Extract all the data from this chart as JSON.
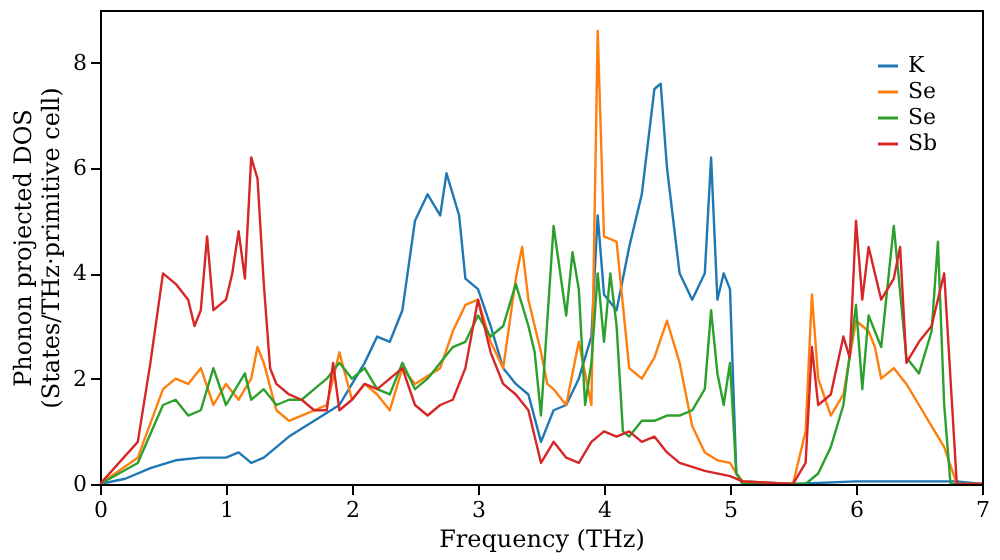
{
  "chart_data": {
    "type": "line",
    "xlabel": "Frequency (THz)",
    "ylabel": "Phonon projected DOS\n(States/THz·primitive cell)",
    "xlim": [
      0,
      7
    ],
    "ylim": [
      0,
      9
    ],
    "xticks": [
      0,
      1,
      2,
      3,
      4,
      5,
      6,
      7
    ],
    "yticks": [
      0,
      2,
      4,
      6,
      8
    ],
    "grid": false,
    "legend": "top right",
    "marker": "none",
    "line_style": "solid",
    "series": [
      {
        "name": "K",
        "color": "#1f77b4",
        "x": [
          0,
          0.2,
          0.4,
          0.6,
          0.8,
          1.0,
          1.1,
          1.2,
          1.3,
          1.5,
          1.7,
          1.9,
          2.0,
          2.1,
          2.2,
          2.3,
          2.4,
          2.5,
          2.6,
          2.7,
          2.75,
          2.85,
          2.9,
          3.0,
          3.1,
          3.2,
          3.3,
          3.4,
          3.5,
          3.6,
          3.7,
          3.8,
          3.9,
          3.95,
          4.0,
          4.1,
          4.2,
          4.3,
          4.4,
          4.45,
          4.5,
          4.6,
          4.7,
          4.8,
          4.85,
          4.9,
          4.95,
          5.0,
          5.05,
          5.1,
          5.5,
          6.0,
          6.8,
          7.0
        ],
        "values": [
          0,
          0.1,
          0.3,
          0.45,
          0.5,
          0.5,
          0.6,
          0.4,
          0.5,
          0.9,
          1.2,
          1.5,
          1.9,
          2.3,
          2.8,
          2.7,
          3.3,
          5.0,
          5.5,
          5.1,
          5.9,
          5.1,
          3.9,
          3.7,
          3.0,
          2.2,
          1.9,
          1.7,
          0.8,
          1.4,
          1.5,
          2.0,
          2.8,
          5.1,
          3.6,
          3.3,
          4.5,
          5.5,
          7.5,
          7.6,
          6.0,
          4.0,
          3.5,
          4.0,
          6.2,
          3.5,
          4.0,
          3.7,
          0.2,
          0.05,
          0,
          0.05,
          0.05,
          0
        ]
      },
      {
        "name": "Se",
        "color": "#ff7f0e",
        "x": [
          0,
          0.3,
          0.5,
          0.6,
          0.7,
          0.8,
          0.9,
          1.0,
          1.1,
          1.2,
          1.25,
          1.3,
          1.4,
          1.5,
          1.6,
          1.8,
          1.9,
          2.0,
          2.1,
          2.2,
          2.3,
          2.4,
          2.5,
          2.7,
          2.8,
          2.9,
          3.0,
          3.1,
          3.2,
          3.3,
          3.35,
          3.4,
          3.5,
          3.55,
          3.6,
          3.7,
          3.8,
          3.9,
          3.95,
          4.0,
          4.1,
          4.15,
          4.2,
          4.3,
          4.4,
          4.5,
          4.6,
          4.7,
          4.8,
          4.9,
          5.0,
          5.05,
          5.1,
          5.5,
          5.6,
          5.65,
          5.7,
          5.8,
          5.9,
          6.0,
          6.1,
          6.15,
          6.2,
          6.3,
          6.4,
          6.5,
          6.6,
          6.7,
          6.8,
          7.0
        ],
        "values": [
          0,
          0.5,
          1.8,
          2.0,
          1.9,
          2.2,
          1.5,
          1.9,
          1.6,
          2.0,
          2.6,
          2.3,
          1.4,
          1.2,
          1.3,
          1.5,
          2.5,
          1.6,
          1.9,
          1.7,
          1.4,
          2.2,
          1.9,
          2.2,
          2.9,
          3.4,
          3.5,
          2.7,
          2.2,
          3.9,
          4.5,
          3.5,
          2.5,
          1.9,
          1.8,
          1.5,
          2.7,
          1.5,
          8.6,
          4.7,
          4.6,
          3.4,
          2.2,
          2.0,
          2.4,
          3.1,
          2.3,
          1.1,
          0.6,
          0.45,
          0.4,
          0.2,
          0.05,
          0,
          1.0,
          3.6,
          2.0,
          1.3,
          1.7,
          3.1,
          2.9,
          2.6,
          2.0,
          2.2,
          1.9,
          1.5,
          1.1,
          0.7,
          0,
          0
        ]
      },
      {
        "name": "Se",
        "color": "#2ca02c",
        "x": [
          0,
          0.3,
          0.5,
          0.6,
          0.7,
          0.8,
          0.9,
          1.0,
          1.1,
          1.15,
          1.2,
          1.3,
          1.4,
          1.5,
          1.6,
          1.7,
          1.8,
          1.9,
          2.0,
          2.1,
          2.2,
          2.3,
          2.4,
          2.5,
          2.6,
          2.8,
          2.9,
          3.0,
          3.1,
          3.2,
          3.3,
          3.4,
          3.45,
          3.5,
          3.6,
          3.7,
          3.75,
          3.8,
          3.85,
          3.9,
          3.95,
          4.0,
          4.05,
          4.1,
          4.15,
          4.2,
          4.3,
          4.4,
          4.5,
          4.6,
          4.7,
          4.8,
          4.85,
          4.9,
          4.95,
          5.0,
          5.05,
          5.1,
          5.6,
          5.7,
          5.8,
          5.9,
          6.0,
          6.05,
          6.1,
          6.2,
          6.3,
          6.4,
          6.5,
          6.6,
          6.65,
          6.7,
          6.75,
          7.0
        ],
        "values": [
          0,
          0.4,
          1.5,
          1.6,
          1.3,
          1.4,
          2.2,
          1.5,
          1.9,
          2.1,
          1.6,
          1.8,
          1.5,
          1.6,
          1.6,
          1.8,
          2.0,
          2.3,
          2.0,
          2.2,
          1.8,
          1.7,
          2.3,
          1.8,
          2.0,
          2.6,
          2.7,
          3.2,
          2.8,
          3.0,
          3.8,
          3.0,
          2.5,
          1.3,
          4.9,
          3.2,
          4.4,
          3.7,
          1.5,
          2.3,
          4.0,
          2.7,
          4.0,
          3.0,
          1.0,
          0.9,
          1.2,
          1.2,
          1.3,
          1.3,
          1.4,
          1.8,
          3.3,
          2.1,
          1.5,
          2.3,
          0.2,
          0,
          0,
          0.2,
          0.7,
          1.5,
          3.4,
          1.8,
          3.2,
          2.6,
          4.9,
          2.4,
          2.1,
          2.9,
          4.6,
          1.5,
          0,
          0
        ]
      },
      {
        "name": "Sb",
        "color": "#d62728",
        "x": [
          0,
          0.3,
          0.4,
          0.5,
          0.6,
          0.7,
          0.75,
          0.8,
          0.85,
          0.9,
          1.0,
          1.05,
          1.1,
          1.15,
          1.2,
          1.25,
          1.3,
          1.35,
          1.4,
          1.5,
          1.6,
          1.7,
          1.8,
          1.85,
          1.9,
          2.0,
          2.1,
          2.2,
          2.3,
          2.4,
          2.5,
          2.6,
          2.7,
          2.8,
          2.9,
          3.0,
          3.1,
          3.2,
          3.3,
          3.4,
          3.5,
          3.6,
          3.7,
          3.8,
          3.9,
          4.0,
          4.1,
          4.2,
          4.3,
          4.4,
          4.5,
          4.6,
          4.8,
          5.0,
          5.1,
          5.5,
          5.6,
          5.65,
          5.7,
          5.8,
          5.9,
          5.95,
          6.0,
          6.05,
          6.1,
          6.2,
          6.3,
          6.35,
          6.4,
          6.5,
          6.6,
          6.7,
          6.8,
          7.0
        ],
        "values": [
          0,
          0.8,
          2.3,
          4.0,
          3.8,
          3.5,
          3.0,
          3.3,
          4.7,
          3.3,
          3.5,
          4.0,
          4.8,
          3.9,
          6.2,
          5.8,
          3.8,
          2.2,
          1.9,
          1.7,
          1.6,
          1.4,
          1.4,
          2.3,
          1.4,
          1.6,
          1.9,
          1.8,
          2.0,
          2.2,
          1.5,
          1.3,
          1.5,
          1.6,
          2.2,
          3.5,
          2.5,
          1.9,
          1.7,
          1.4,
          0.4,
          0.8,
          0.5,
          0.4,
          0.8,
          1.0,
          0.9,
          1.0,
          0.8,
          0.9,
          0.6,
          0.4,
          0.25,
          0.15,
          0.05,
          0,
          0.4,
          2.6,
          1.5,
          1.7,
          2.8,
          2.4,
          5.0,
          3.5,
          4.5,
          3.5,
          3.9,
          4.5,
          2.3,
          2.7,
          3.0,
          4.0,
          0,
          0
        ]
      }
    ]
  }
}
